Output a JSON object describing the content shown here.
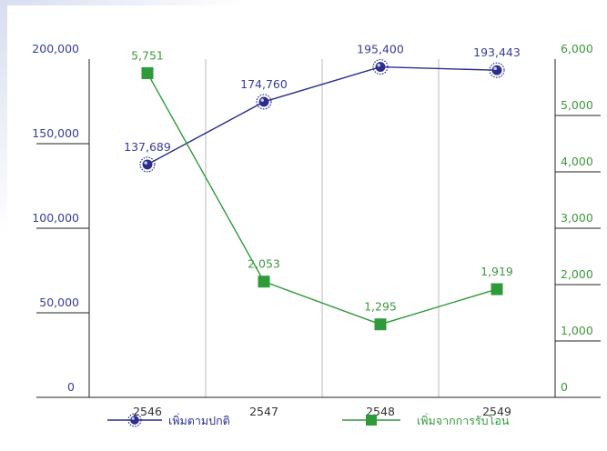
{
  "chart_data": {
    "type": "line",
    "categories": [
      "2546",
      "2547",
      "2548",
      "2549"
    ],
    "y_left": {
      "ticks": [
        "0",
        "50,000",
        "100,000",
        "150,000",
        "200,000"
      ],
      "ylim": [
        0,
        200000
      ]
    },
    "y_right": {
      "ticks": [
        "0",
        "1,000",
        "2,000",
        "3,000",
        "4,000",
        "5,000",
        "6,000"
      ],
      "ylim": [
        0,
        6000
      ]
    },
    "series": [
      {
        "name": "เพิ่มตามปกติ",
        "axis": "left",
        "color": "#2b2e8c",
        "marker": "starburst",
        "values": [
          137689,
          174760,
          195400,
          193443
        ],
        "labels": [
          "137,689",
          "174,760",
          "195,400",
          "193,443"
        ]
      },
      {
        "name": "เพิ่มจากการรับโอน",
        "axis": "right",
        "color": "#2f9a3a",
        "marker": "square",
        "values": [
          5751,
          2053,
          1295,
          1919
        ],
        "labels": [
          "5,751",
          "2,053",
          "1,295",
          "1,919"
        ]
      }
    ],
    "grid": "vertical",
    "legend": "bottom"
  }
}
